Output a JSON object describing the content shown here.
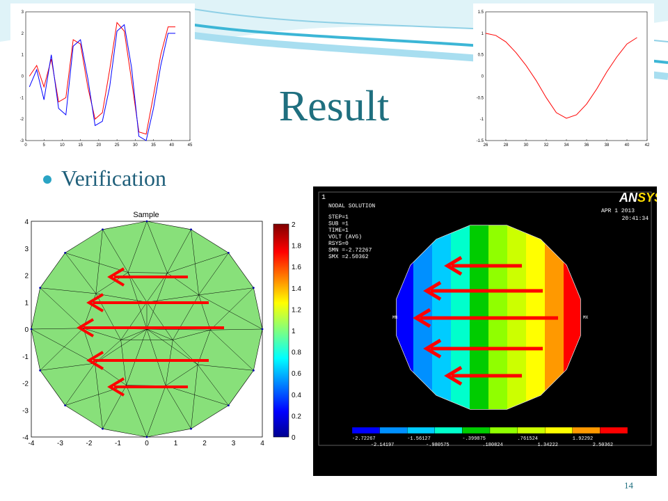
{
  "slide": {
    "title": "Result",
    "bullet": "Verification",
    "page_number": "14"
  },
  "colors": {
    "title": "#1f6f7f",
    "bullet": "#2aa4c4",
    "arrow": "#ff0000",
    "mesh_fill": "#88e07a"
  },
  "chart_data": [
    {
      "type": "line",
      "xlim": [
        0,
        45
      ],
      "ylim": [
        -3,
        3
      ],
      "xticks": [
        "0",
        "5",
        "10",
        "15",
        "20",
        "25",
        "30",
        "35",
        "40",
        "45"
      ],
      "yticks": [
        "3",
        "2",
        "1",
        "0",
        "-1",
        "-2",
        "-3"
      ],
      "series": [
        {
          "color": "#ff0000",
          "x": [
            1,
            3,
            5,
            7,
            9,
            11,
            13,
            15,
            17,
            19,
            21,
            23,
            25,
            27,
            29,
            31,
            33,
            35,
            37,
            39,
            41
          ],
          "y": [
            0,
            0.5,
            -0.5,
            0.8,
            -1.2,
            -1.0,
            1.7,
            1.5,
            -0.5,
            -2.0,
            -1.7,
            0.3,
            2.5,
            2.1,
            -0.2,
            -2.6,
            -2.7,
            -0.9,
            1.0,
            2.3,
            2.3
          ]
        },
        {
          "color": "#0000ff",
          "x": [
            1,
            3,
            5,
            7,
            9,
            11,
            13,
            15,
            17,
            19,
            21,
            23,
            25,
            27,
            29,
            31,
            33,
            35,
            37,
            39,
            41
          ],
          "y": [
            -0.5,
            0.3,
            -1.1,
            1.0,
            -1.5,
            -1.8,
            1.4,
            1.7,
            -0.1,
            -2.3,
            -2.1,
            -0.5,
            2.1,
            2.4,
            0.4,
            -2.8,
            -3.0,
            -1.5,
            0.5,
            2.0,
            2.0
          ]
        }
      ]
    },
    {
      "type": "line",
      "xlim": [
        26,
        42
      ],
      "ylim": [
        -1.5,
        1.5
      ],
      "xticks": [
        "26",
        "28",
        "30",
        "32",
        "34",
        "36",
        "38",
        "40",
        "42"
      ],
      "yticks": [
        "1.5",
        "1",
        "0.5",
        "0",
        "-0.5",
        "-1",
        "-1.5"
      ],
      "series": [
        {
          "color": "#ff0000",
          "x": [
            26,
            27,
            28,
            29,
            30,
            31,
            32,
            33,
            34,
            35,
            36,
            37,
            38,
            39,
            40,
            41
          ],
          "y": [
            1.0,
            0.95,
            0.8,
            0.55,
            0.25,
            -0.1,
            -0.5,
            -0.85,
            -0.98,
            -0.9,
            -0.65,
            -0.3,
            0.1,
            0.45,
            0.75,
            0.9
          ]
        }
      ]
    },
    {
      "type": "heatmap",
      "title": "Sample",
      "xlim": [
        -4,
        4
      ],
      "ylim": [
        -4,
        4
      ],
      "xticks": [
        "-4",
        "-3",
        "-2",
        "-1",
        "0",
        "1",
        "2",
        "3",
        "4"
      ],
      "yticks": [
        "4",
        "3",
        "2",
        "1",
        "0",
        "-1",
        "-2",
        "-3",
        "-4"
      ],
      "colorbar_ticks": [
        "2",
        "1.8",
        "1.6",
        "1.4",
        "1.2",
        "1",
        "0.8",
        "0.6",
        "0.4",
        "0.2",
        "0"
      ]
    }
  ],
  "ansys": {
    "logo_an": "AN",
    "logo_sys": "SYS",
    "corner_label": "1",
    "heading": "NODAL SOLUTION",
    "info": [
      "STEP=1",
      "SUB =1",
      "TIME=1",
      "VOLT      (AVG)",
      "RSYS=0",
      "SMN =-2.72267",
      "SMX =2.50362"
    ],
    "date": "APR  1 2013",
    "time": "20:41:34",
    "mn_label": "MN",
    "mx_label": "MX",
    "legend_top": [
      "-2.72267",
      "-1.56127",
      "-.399875",
      ".761524",
      "1.92292"
    ],
    "legend_bottom": [
      "-2.14197",
      "-.980575",
      ".180824",
      "1.34222",
      "2.50362"
    ],
    "bands": [
      "#0000ff",
      "#0090ff",
      "#00ccff",
      "#00ffcc",
      "#00cc00",
      "#90ff00",
      "#ccff00",
      "#ffff00",
      "#ff9900",
      "#ff0000"
    ]
  }
}
